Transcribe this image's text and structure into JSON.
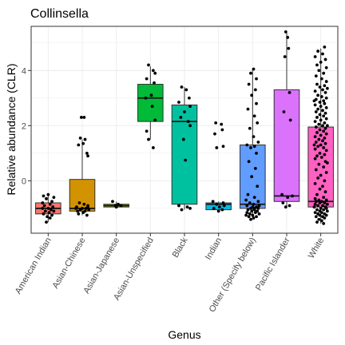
{
  "chart_data": {
    "type": "box",
    "title": "Collinsella",
    "xlabel": "Genus",
    "ylabel": "Relative abundance (CLR)",
    "ylim": [
      -1.9,
      5.6
    ],
    "y_ticks": [
      0,
      2,
      4
    ],
    "grid": true,
    "legend": "none",
    "categories": [
      "American Indian",
      "Asian-Chinese",
      "Asian-Japanese",
      "Asian-Unspecified",
      "Black",
      "Indian",
      "Other (Specify below)",
      "Pacific Islander",
      "White"
    ],
    "colors": [
      "#F8766D",
      "#D39200",
      "#93AA00",
      "#00BA38",
      "#00C19F",
      "#00B9E3",
      "#619CFF",
      "#DB72FB",
      "#FF61C3"
    ],
    "boxes": [
      {
        "min": -1.5,
        "q1": -1.2,
        "median": -1.0,
        "q3": -0.8,
        "max": -0.5
      },
      {
        "min": -1.25,
        "q1": -1.1,
        "median": -1.0,
        "q3": 0.05,
        "max": 1.5
      },
      {
        "min": -0.95,
        "q1": -0.95,
        "median": -0.9,
        "q3": -0.85,
        "max": -0.75
      },
      {
        "min": 1.5,
        "q1": 2.15,
        "median": 3.0,
        "q3": 3.5,
        "max": 4.15
      },
      {
        "min": -1.05,
        "q1": -0.85,
        "median": 2.15,
        "q3": 2.75,
        "max": 3.4
      },
      {
        "min": -1.15,
        "q1": -1.05,
        "median": -0.85,
        "q3": -0.8,
        "max": -0.75
      },
      {
        "min": -1.4,
        "q1": -1.0,
        "median": -0.85,
        "q3": 1.3,
        "max": 4.05
      },
      {
        "min": -0.95,
        "q1": -0.75,
        "median": -0.55,
        "q3": 3.3,
        "max": 5.4
      },
      {
        "min": -1.55,
        "q1": -0.95,
        "median": -0.75,
        "q3": 1.95,
        "max": 4.8
      }
    ],
    "points": [
      [
        [
          -0.5,
          0.0
        ],
        [
          -0.55,
          -0.25
        ],
        [
          -0.6,
          0.3
        ],
        [
          -0.65,
          -0.1
        ],
        [
          -0.75,
          0.2
        ],
        [
          -0.8,
          -0.3
        ],
        [
          -0.85,
          0.1
        ],
        [
          -0.9,
          -0.2
        ],
        [
          -0.95,
          0.25
        ],
        [
          -1.0,
          0.0
        ],
        [
          -1.0,
          -0.3
        ],
        [
          -1.05,
          0.15
        ],
        [
          -1.1,
          -0.15
        ],
        [
          -1.1,
          0.3
        ],
        [
          -1.15,
          0.05
        ],
        [
          -1.2,
          -0.25
        ],
        [
          -1.25,
          0.2
        ],
        [
          -1.3,
          -0.05
        ],
        [
          -1.35,
          0.1
        ],
        [
          -1.5,
          -0.1
        ]
      ],
      [
        [
          2.3,
          -0.05
        ],
        [
          2.3,
          0.1
        ],
        [
          1.55,
          -0.1
        ],
        [
          1.5,
          0.15
        ],
        [
          1.3,
          -0.2
        ],
        [
          1.35,
          0.05
        ],
        [
          1.0,
          0.25
        ],
        [
          0.9,
          0.3
        ],
        [
          -0.8,
          -0.15
        ],
        [
          -0.85,
          0.1
        ],
        [
          -0.9,
          0.3
        ],
        [
          -0.95,
          -0.3
        ],
        [
          -1.0,
          0.0
        ],
        [
          -1.0,
          0.2
        ],
        [
          -1.05,
          -0.1
        ],
        [
          -1.05,
          0.35
        ],
        [
          -1.1,
          -0.25
        ],
        [
          -1.1,
          0.15
        ],
        [
          -1.15,
          0.05
        ],
        [
          -1.2,
          -0.2
        ],
        [
          -1.25,
          0.25
        ],
        [
          -0.95,
          0.3
        ],
        [
          -1.0,
          -0.35
        ]
      ],
      [
        [
          -0.75,
          -0.2
        ],
        [
          -0.85,
          0.1
        ],
        [
          -0.9,
          -0.05
        ],
        [
          -0.9,
          0.25
        ],
        [
          -0.95,
          0.0
        ]
      ],
      [
        [
          4.2,
          -0.1
        ],
        [
          4.0,
          0.15
        ],
        [
          3.9,
          0.25
        ],
        [
          3.7,
          -0.2
        ],
        [
          3.55,
          0.2
        ],
        [
          3.1,
          0.05
        ],
        [
          3.0,
          -0.25
        ],
        [
          2.7,
          0.1
        ],
        [
          2.2,
          0.25
        ],
        [
          1.8,
          -0.2
        ],
        [
          1.5,
          -0.1
        ],
        [
          1.2,
          0.15
        ]
      ],
      [
        [
          3.4,
          -0.15
        ],
        [
          3.3,
          0.1
        ],
        [
          3.0,
          0.25
        ],
        [
          2.85,
          -0.3
        ],
        [
          2.7,
          0.3
        ],
        [
          2.5,
          0.0
        ],
        [
          2.3,
          -0.2
        ],
        [
          2.15,
          0.2
        ],
        [
          2.0,
          0.3
        ],
        [
          1.5,
          -0.05
        ],
        [
          0.75,
          0.05
        ],
        [
          -0.9,
          -0.3
        ],
        [
          -0.95,
          0.15
        ],
        [
          -1.0,
          0.3
        ],
        [
          -1.05,
          -0.15
        ]
      ],
      [
        [
          2.1,
          -0.15
        ],
        [
          2.05,
          0.15
        ],
        [
          1.85,
          0.2
        ],
        [
          1.7,
          -0.2
        ],
        [
          1.25,
          0.25
        ],
        [
          1.2,
          -0.1
        ],
        [
          -0.75,
          -0.3
        ],
        [
          -0.8,
          0.25
        ],
        [
          -0.85,
          -0.1
        ],
        [
          -0.9,
          0.3
        ],
        [
          -0.95,
          0.05
        ],
        [
          -1.0,
          -0.25
        ],
        [
          -1.05,
          0.2
        ],
        [
          -1.1,
          0.0
        ]
      ],
      [
        [
          4.05,
          0.05
        ],
        [
          3.9,
          -0.1
        ],
        [
          3.7,
          0.2
        ],
        [
          3.5,
          -0.2
        ],
        [
          3.3,
          0.15
        ],
        [
          3.1,
          -0.05
        ],
        [
          2.8,
          0.2
        ],
        [
          2.6,
          -0.25
        ],
        [
          2.35,
          0.1
        ],
        [
          2.1,
          0.25
        ],
        [
          1.9,
          -0.15
        ],
        [
          1.6,
          0.05
        ],
        [
          1.4,
          0.3
        ],
        [
          1.3,
          -0.3
        ],
        [
          1.25,
          0.1
        ],
        [
          1.2,
          -0.1
        ],
        [
          1.0,
          0.2
        ],
        [
          0.7,
          -0.2
        ],
        [
          0.45,
          0.15
        ],
        [
          0.15,
          -0.05
        ],
        [
          -0.2,
          0.25
        ],
        [
          -0.5,
          -0.25
        ],
        [
          -0.6,
          0.1
        ],
        [
          -0.7,
          -0.35
        ],
        [
          -0.75,
          0.3
        ],
        [
          -0.8,
          -0.15
        ],
        [
          -0.85,
          0.05
        ],
        [
          -0.9,
          0.35
        ],
        [
          -0.9,
          -0.3
        ],
        [
          -0.95,
          0.2
        ],
        [
          -1.0,
          -0.1
        ],
        [
          -1.0,
          0.3
        ],
        [
          -1.05,
          -0.25
        ],
        [
          -1.05,
          0.1
        ],
        [
          -1.1,
          -0.05
        ],
        [
          -1.1,
          0.25
        ],
        [
          -1.15,
          -0.3
        ],
        [
          -1.15,
          0.15
        ],
        [
          -1.2,
          -0.15
        ],
        [
          -1.2,
          0.35
        ],
        [
          -1.25,
          0.0
        ],
        [
          -1.25,
          -0.35
        ],
        [
          -1.3,
          0.2
        ],
        [
          -1.3,
          -0.2
        ],
        [
          -1.35,
          0.05
        ],
        [
          -1.4,
          -0.1
        ],
        [
          -0.95,
          0.0
        ],
        [
          -1.0,
          0.1
        ]
      ],
      [
        [
          5.4,
          -0.05
        ],
        [
          5.2,
          0.05
        ],
        [
          4.8,
          0.1
        ],
        [
          4.5,
          -0.1
        ],
        [
          3.2,
          0.15
        ],
        [
          2.5,
          -0.15
        ],
        [
          2.2,
          0.2
        ],
        [
          -0.5,
          -0.25
        ],
        [
          -0.55,
          0.3
        ],
        [
          -0.6,
          0.05
        ],
        [
          -0.8,
          -0.2
        ],
        [
          -0.9,
          0.15
        ],
        [
          -0.95,
          -0.05
        ]
      ],
      [
        [
          4.85,
          0.2
        ],
        [
          4.7,
          -0.15
        ],
        [
          4.6,
          0.1
        ],
        [
          4.5,
          -0.3
        ],
        [
          4.4,
          0.25
        ],
        [
          4.3,
          0.0
        ],
        [
          4.2,
          -0.2
        ],
        [
          4.1,
          0.3
        ],
        [
          4.0,
          -0.1
        ],
        [
          3.9,
          0.15
        ],
        [
          3.8,
          -0.25
        ],
        [
          3.7,
          0.05
        ],
        [
          3.6,
          0.3
        ],
        [
          3.5,
          -0.2
        ],
        [
          3.45,
          0.2
        ],
        [
          3.4,
          -0.05
        ],
        [
          3.3,
          0.1
        ],
        [
          3.25,
          -0.3
        ],
        [
          3.2,
          0.25
        ],
        [
          3.1,
          -0.15
        ],
        [
          3.05,
          0.05
        ],
        [
          3.0,
          0.3
        ],
        [
          2.95,
          -0.25
        ],
        [
          2.9,
          0.15
        ],
        [
          2.85,
          -0.05
        ],
        [
          2.8,
          0.2
        ],
        [
          2.75,
          -0.3
        ],
        [
          2.7,
          0.0
        ],
        [
          2.65,
          0.3
        ],
        [
          2.6,
          -0.15
        ],
        [
          2.55,
          0.1
        ],
        [
          2.5,
          -0.25
        ],
        [
          2.45,
          0.25
        ],
        [
          2.4,
          -0.05
        ],
        [
          2.35,
          0.15
        ],
        [
          2.3,
          -0.2
        ],
        [
          2.25,
          0.3
        ],
        [
          2.2,
          0.0
        ],
        [
          2.15,
          -0.3
        ],
        [
          2.1,
          0.2
        ],
        [
          2.05,
          -0.1
        ],
        [
          2.0,
          0.1
        ],
        [
          1.95,
          -0.25
        ],
        [
          1.9,
          0.25
        ],
        [
          1.85,
          -0.05
        ],
        [
          1.8,
          0.15
        ],
        [
          1.75,
          -0.2
        ],
        [
          1.7,
          0.3
        ],
        [
          1.65,
          0.0
        ],
        [
          1.6,
          -0.3
        ],
        [
          1.55,
          0.2
        ],
        [
          1.5,
          -0.1
        ],
        [
          1.45,
          0.1
        ],
        [
          1.4,
          -0.25
        ],
        [
          1.35,
          0.25
        ],
        [
          1.3,
          0.0
        ],
        [
          1.25,
          -0.15
        ],
        [
          1.2,
          0.15
        ],
        [
          1.15,
          -0.3
        ],
        [
          1.1,
          0.3
        ],
        [
          1.0,
          -0.05
        ],
        [
          0.95,
          0.2
        ],
        [
          0.9,
          -0.2
        ],
        [
          0.85,
          0.05
        ],
        [
          0.8,
          -0.3
        ],
        [
          0.7,
          0.25
        ],
        [
          0.6,
          -0.1
        ],
        [
          0.5,
          0.15
        ],
        [
          0.4,
          -0.25
        ],
        [
          0.3,
          0.3
        ],
        [
          0.2,
          0.0
        ],
        [
          0.1,
          -0.15
        ],
        [
          0.0,
          0.2
        ],
        [
          -0.1,
          -0.3
        ],
        [
          -0.2,
          0.1
        ],
        [
          -0.3,
          -0.05
        ],
        [
          -0.4,
          0.25
        ],
        [
          -0.5,
          -0.2
        ],
        [
          -0.6,
          0.15
        ],
        [
          -0.65,
          -0.3
        ],
        [
          -0.7,
          0.3
        ],
        [
          -0.7,
          -0.1
        ],
        [
          -0.75,
          0.05
        ],
        [
          -0.75,
          -0.25
        ],
        [
          -0.8,
          0.2
        ],
        [
          -0.8,
          -0.05
        ],
        [
          -0.85,
          0.35
        ],
        [
          -0.85,
          -0.3
        ],
        [
          -0.9,
          0.1
        ],
        [
          -0.9,
          -0.15
        ],
        [
          -0.95,
          0.25
        ],
        [
          -0.95,
          -0.35
        ],
        [
          -1.0,
          0.0
        ],
        [
          -1.0,
          0.3
        ],
        [
          -1.05,
          -0.2
        ],
        [
          -1.05,
          0.15
        ],
        [
          -1.1,
          -0.05
        ],
        [
          -1.1,
          0.35
        ],
        [
          -1.15,
          -0.3
        ],
        [
          -1.15,
          0.05
        ],
        [
          -1.2,
          0.2
        ],
        [
          -1.2,
          -0.15
        ],
        [
          -1.25,
          0.3
        ],
        [
          -1.25,
          -0.05
        ],
        [
          -1.3,
          0.1
        ],
        [
          -1.3,
          -0.25
        ],
        [
          -1.35,
          0.2
        ],
        [
          -1.4,
          -0.1
        ],
        [
          -1.45,
          0.05
        ],
        [
          -1.5,
          -0.2
        ],
        [
          -1.55,
          0.15
        ],
        [
          3.35,
          0.35
        ],
        [
          2.9,
          -0.35
        ],
        [
          2.0,
          0.35
        ],
        [
          1.3,
          -0.35
        ],
        [
          0.65,
          0.35
        ]
      ]
    ]
  }
}
